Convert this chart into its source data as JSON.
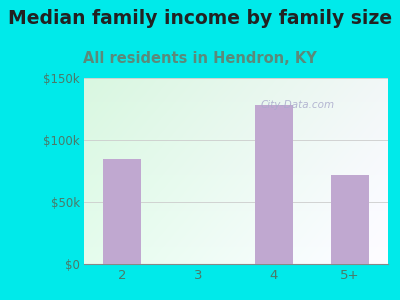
{
  "title": "Median family income by family size",
  "subtitle": "All residents in Hendron, KY",
  "categories": [
    "2",
    "3",
    "4",
    "5+"
  ],
  "values": [
    85000,
    0,
    128000,
    72000
  ],
  "bar_color": "#c0a8d0",
  "title_fontsize": 13.5,
  "subtitle_fontsize": 10.5,
  "subtitle_color": "#5a8a7a",
  "title_color": "#222222",
  "tick_color": "#4a7a6a",
  "background_outer": "#00eaea",
  "ylim": [
    0,
    150000
  ],
  "yticks": [
    0,
    50000,
    100000,
    150000
  ],
  "ytick_labels": [
    "$0",
    "$50k",
    "$100k",
    "$150k"
  ],
  "watermark": "City-Data.com",
  "watermark_color": "#aaaacc",
  "grid_color": "#cccccc"
}
